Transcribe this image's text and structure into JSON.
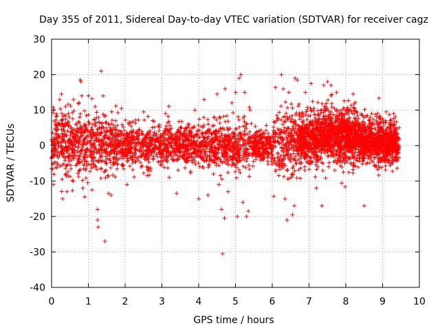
{
  "chart_data": {
    "type": "scatter",
    "title": "Day 355 of 2011, Sidereal Day-to-day VTEC variation (SDTVAR) for receiver cagz",
    "xlabel": "GPS time / hours",
    "ylabel": "SDTVAR / TECUs",
    "xlim": [
      0,
      10
    ],
    "ylim": [
      -40,
      30
    ],
    "xticks": [
      0,
      1,
      2,
      3,
      4,
      5,
      6,
      7,
      8,
      9,
      10
    ],
    "yticks": [
      -40,
      -30,
      -20,
      -10,
      0,
      10,
      20,
      30
    ],
    "grid": true,
    "marker": "+",
    "color": "#ff0000",
    "series": [
      {
        "name": "SDTVAR",
        "outliers": [
          {
            "x": 0.05,
            "y": -11
          },
          {
            "x": 0.22,
            "y": 13
          },
          {
            "x": 0.27,
            "y": 14.5
          },
          {
            "x": 0.3,
            "y": -15
          },
          {
            "x": 0.38,
            "y": 11
          },
          {
            "x": 0.42,
            "y": -13
          },
          {
            "x": 0.6,
            "y": 13
          },
          {
            "x": 0.78,
            "y": 18.5
          },
          {
            "x": 0.8,
            "y": 18
          },
          {
            "x": 0.82,
            "y": 14
          },
          {
            "x": 0.85,
            "y": -12
          },
          {
            "x": 0.9,
            "y": -14.5
          },
          {
            "x": 1.0,
            "y": 14
          },
          {
            "x": 1.1,
            "y": -12.5
          },
          {
            "x": 1.25,
            "y": -18
          },
          {
            "x": 1.27,
            "y": -23
          },
          {
            "x": 1.25,
            "y": -21
          },
          {
            "x": 1.35,
            "y": 21
          },
          {
            "x": 1.45,
            "y": -27
          },
          {
            "x": 1.55,
            "y": -13.5
          },
          {
            "x": 1.62,
            "y": -14
          },
          {
            "x": 1.4,
            "y": 14
          },
          {
            "x": 1.9,
            "y": 10.5
          },
          {
            "x": 2.05,
            "y": -11
          },
          {
            "x": 2.5,
            "y": 9.5
          },
          {
            "x": 2.6,
            "y": -8.5
          },
          {
            "x": 3.1,
            "y": 9
          },
          {
            "x": 3.2,
            "y": -9
          },
          {
            "x": 3.4,
            "y": -13.5
          },
          {
            "x": 3.9,
            "y": 10
          },
          {
            "x": 4.0,
            "y": -15
          },
          {
            "x": 4.15,
            "y": 13
          },
          {
            "x": 4.25,
            "y": -14
          },
          {
            "x": 4.4,
            "y": -8
          },
          {
            "x": 4.5,
            "y": 14.5
          },
          {
            "x": 4.55,
            "y": -11
          },
          {
            "x": 4.62,
            "y": -18
          },
          {
            "x": 4.65,
            "y": -30.5
          },
          {
            "x": 4.7,
            "y": -20.5
          },
          {
            "x": 4.72,
            "y": 16
          },
          {
            "x": 4.8,
            "y": -13
          },
          {
            "x": 4.9,
            "y": 12
          },
          {
            "x": 5.0,
            "y": 15
          },
          {
            "x": 5.05,
            "y": -20
          },
          {
            "x": 5.1,
            "y": 19
          },
          {
            "x": 5.15,
            "y": 20
          },
          {
            "x": 5.2,
            "y": -16
          },
          {
            "x": 5.25,
            "y": 15
          },
          {
            "x": 5.3,
            "y": -20
          },
          {
            "x": 5.35,
            "y": -18.5
          },
          {
            "x": 5.4,
            "y": 10
          },
          {
            "x": 6.25,
            "y": 20
          },
          {
            "x": 6.3,
            "y": 16
          },
          {
            "x": 6.35,
            "y": -15
          },
          {
            "x": 6.4,
            "y": -21
          },
          {
            "x": 6.45,
            "y": 15
          },
          {
            "x": 6.55,
            "y": -19.5
          },
          {
            "x": 6.6,
            "y": -17
          },
          {
            "x": 6.62,
            "y": 19
          },
          {
            "x": 6.68,
            "y": 18.5
          },
          {
            "x": 6.9,
            "y": 15
          },
          {
            "x": 7.05,
            "y": 17.5
          },
          {
            "x": 7.2,
            "y": -12
          },
          {
            "x": 7.4,
            "y": 17
          },
          {
            "x": 7.35,
            "y": -17
          },
          {
            "x": 7.5,
            "y": 18
          },
          {
            "x": 7.6,
            "y": 17
          },
          {
            "x": 7.75,
            "y": 15
          },
          {
            "x": 8.2,
            "y": 14.5
          },
          {
            "x": 8.5,
            "y": -17
          },
          {
            "x": 9.1,
            "y": 9.5
          },
          {
            "x": 9.3,
            "y": 9
          }
        ]
      }
    ]
  }
}
